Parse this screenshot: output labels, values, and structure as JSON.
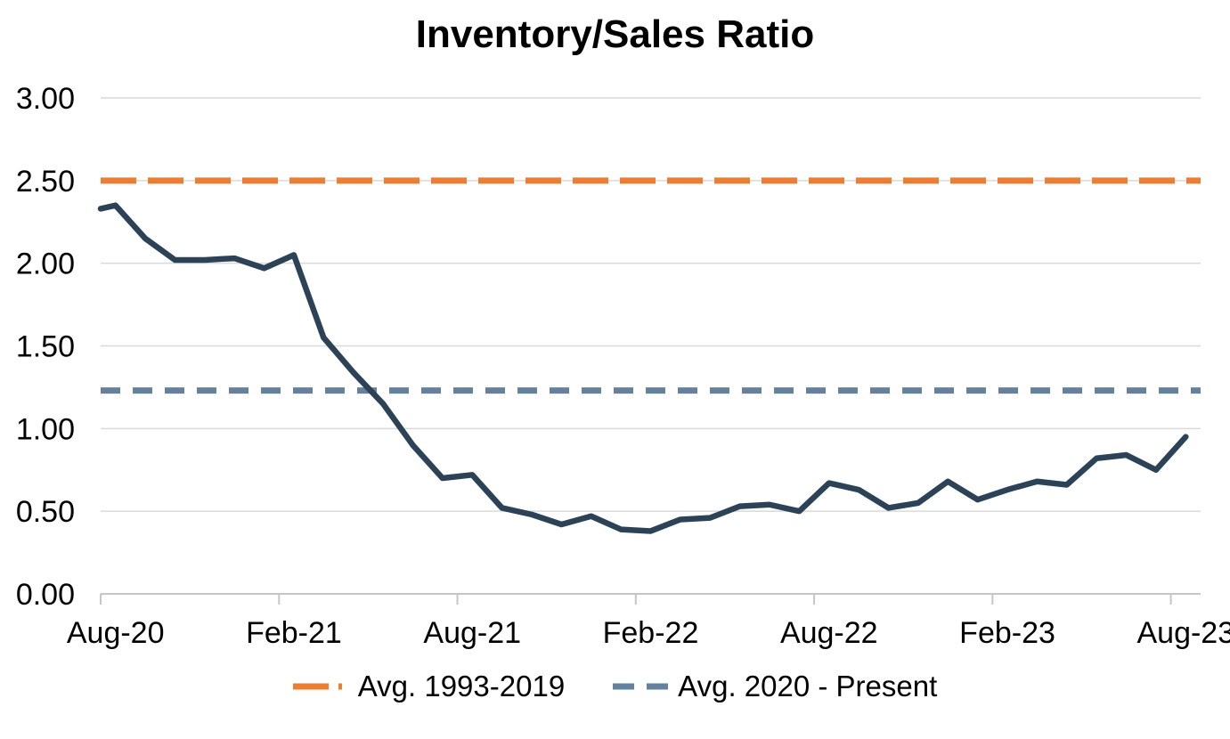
{
  "chart_data": {
    "type": "line",
    "title": "Inventory/Sales Ratio",
    "categories": [
      "Aug-20",
      "Sep-20",
      "Oct-20",
      "Nov-20",
      "Dec-20",
      "Jan-21",
      "Feb-21",
      "Mar-21",
      "Apr-21",
      "May-21",
      "Jun-21",
      "Jul-21",
      "Aug-21",
      "Sep-21",
      "Oct-21",
      "Nov-21",
      "Dec-21",
      "Jan-22",
      "Feb-22",
      "Mar-22",
      "Apr-22",
      "May-22",
      "Jun-22",
      "Jul-22",
      "Aug-22",
      "Sep-22",
      "Oct-22",
      "Nov-22",
      "Dec-22",
      "Jan-23",
      "Feb-23",
      "Mar-23",
      "Apr-23",
      "May-23",
      "Jun-23",
      "Jul-23",
      "Aug-23"
    ],
    "values": [
      2.35,
      2.15,
      2.02,
      2.02,
      2.03,
      1.97,
      2.05,
      1.55,
      1.34,
      1.15,
      0.9,
      0.7,
      0.72,
      0.52,
      0.48,
      0.42,
      0.47,
      0.39,
      0.38,
      0.45,
      0.46,
      0.53,
      0.54,
      0.5,
      0.67,
      0.63,
      0.52,
      0.55,
      0.68,
      0.57,
      0.63,
      0.68,
      0.66,
      0.82,
      0.84,
      0.75,
      0.95
    ],
    "edge_start_value": 2.33,
    "x_tick_labels": [
      "Aug-20",
      "Feb-21",
      "Aug-21",
      "Feb-22",
      "Aug-22",
      "Feb-23",
      "Aug-23"
    ],
    "x_label_every": 6,
    "y_axis": {
      "min": 0.0,
      "max": 3.0,
      "step": 0.5,
      "labels": [
        "0.00",
        "0.50",
        "1.00",
        "1.50",
        "2.00",
        "2.50",
        "3.00"
      ]
    },
    "grid": true,
    "reference_lines": [
      {
        "name": "avg-1993-2019",
        "label": "Avg. 1993-2019",
        "value": 2.5,
        "color": "#ED7D31",
        "dash": "long"
      },
      {
        "name": "avg-2020-present",
        "label": "Avg. 2020 - Present",
        "value": 1.23,
        "color": "#64819D",
        "dash": "short"
      }
    ],
    "series_name": "Inventory/Sales Ratio",
    "series_color": "#2B4257",
    "gridline_color": "#D9D9D9",
    "axis_line_color": "#C6C6C6",
    "legend_position": "bottom"
  },
  "legend": {
    "item1_label": "Avg. 1993-2019",
    "item2_label": "Avg. 2020 - Present"
  }
}
